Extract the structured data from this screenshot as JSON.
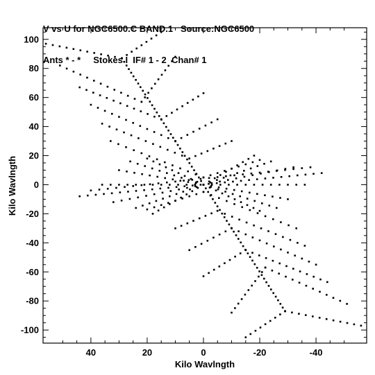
{
  "header": {
    "line1": "V vs U for NGC6500.C BAND.1   Source:NGC6500",
    "line2": "Ants * - *     Stokes I  IF# 1 - 2  Chan# 1"
  },
  "chart_data": {
    "type": "scatter",
    "title": "V vs U for NGC6500.C BAND.1   Source:NGC6500",
    "subtitle": "Ants * - *     Stokes I  IF# 1 - 2  Chan# 1",
    "xlabel": "Kilo Wavlngth",
    "ylabel": "Kilo Wavlngth",
    "xlim": [
      57,
      -58
    ],
    "ylim": [
      -109,
      108
    ],
    "x_ticks": [
      40,
      20,
      0,
      -20,
      -40
    ],
    "x_tick_labels": [
      "40",
      "20",
      "0",
      "-20",
      "-40"
    ],
    "y_ticks": [
      100,
      80,
      60,
      40,
      20,
      0,
      -20,
      -40,
      -60,
      -80,
      -100
    ],
    "y_tick_labels": [
      "100",
      "80",
      "60",
      "40",
      "20",
      "0",
      "-20",
      "-40",
      "-60",
      "-80",
      "-100"
    ],
    "grid": false,
    "marker_color": "#000000",
    "tracks": [
      {
        "from": [
          56,
          97
        ],
        "to": [
          29,
          87
        ],
        "samples": 11
      },
      {
        "from": [
          29,
          87
        ],
        "to": [
          15,
          105
        ],
        "samples": 8
      },
      {
        "from": [
          51,
          82
        ],
        "to": [
          22,
          57
        ],
        "samples": 12
      },
      {
        "from": [
          22,
          57
        ],
        "to": [
          10,
          88
        ],
        "samples": 10
      },
      {
        "from": [
          44,
          67
        ],
        "to": [
          15,
          45
        ],
        "samples": 12
      },
      {
        "from": [
          15,
          45
        ],
        "to": [
          0,
          63
        ],
        "samples": 8
      },
      {
        "from": [
          40,
          55
        ],
        "to": [
          10,
          30
        ],
        "samples": 12
      },
      {
        "from": [
          10,
          30
        ],
        "to": [
          -5,
          45
        ],
        "samples": 7
      },
      {
        "from": [
          36,
          42
        ],
        "to": [
          5,
          18
        ],
        "samples": 12
      },
      {
        "from": [
          5,
          18
        ],
        "to": [
          -10,
          30
        ],
        "samples": 7
      },
      {
        "from": [
          33,
          30
        ],
        "to": [
          0,
          5
        ],
        "samples": 12
      },
      {
        "from": [
          0,
          5
        ],
        "to": [
          -20,
          17
        ],
        "samples": 8
      },
      {
        "from": [
          29,
          87
        ],
        "to": [
          -29,
          -87
        ],
        "samples": 70
      },
      {
        "from": [
          44,
          -8
        ],
        "to": [
          -42,
          8
        ],
        "samples": 30
      },
      {
        "from": [
          40,
          -4
        ],
        "to": [
          -38,
          12
        ],
        "samples": 26
      },
      {
        "from": [
          30,
          10
        ],
        "to": [
          -30,
          -10
        ],
        "samples": 22
      },
      {
        "from": [
          26,
          16
        ],
        "to": [
          -26,
          -16
        ],
        "samples": 20
      },
      {
        "from": [
          20,
          18
        ],
        "to": [
          -20,
          -18
        ],
        "samples": 18
      },
      {
        "from": [
          36,
          0
        ],
        "to": [
          -36,
          0
        ],
        "samples": 24
      },
      {
        "from": [
          32,
          -12
        ],
        "to": [
          -32,
          12
        ],
        "samples": 22
      },
      {
        "from": [
          24,
          -16
        ],
        "to": [
          -24,
          16
        ],
        "samples": 20
      },
      {
        "from": [
          18,
          -20
        ],
        "to": [
          -18,
          20
        ],
        "samples": 18
      },
      {
        "from": [
          -56,
          -97
        ],
        "to": [
          -29,
          -87
        ],
        "samples": 11
      },
      {
        "from": [
          -29,
          -87
        ],
        "to": [
          -15,
          -105
        ],
        "samples": 8
      },
      {
        "from": [
          -51,
          -82
        ],
        "to": [
          -22,
          -57
        ],
        "samples": 12
      },
      {
        "from": [
          -22,
          -57
        ],
        "to": [
          -10,
          -88
        ],
        "samples": 10
      },
      {
        "from": [
          -44,
          -67
        ],
        "to": [
          -15,
          -45
        ],
        "samples": 12
      },
      {
        "from": [
          -15,
          -45
        ],
        "to": [
          0,
          -63
        ],
        "samples": 8
      },
      {
        "from": [
          -40,
          -55
        ],
        "to": [
          -10,
          -30
        ],
        "samples": 12
      },
      {
        "from": [
          -10,
          -30
        ],
        "to": [
          5,
          -45
        ],
        "samples": 7
      },
      {
        "from": [
          -36,
          -42
        ],
        "to": [
          -5,
          -18
        ],
        "samples": 12
      },
      {
        "from": [
          -5,
          -18
        ],
        "to": [
          10,
          -30
        ],
        "samples": 7
      },
      {
        "from": [
          -33,
          -30
        ],
        "to": [
          0,
          -5
        ],
        "samples": 12
      },
      {
        "from": [
          0,
          -5
        ],
        "to": [
          20,
          -17
        ],
        "samples": 8
      }
    ]
  }
}
